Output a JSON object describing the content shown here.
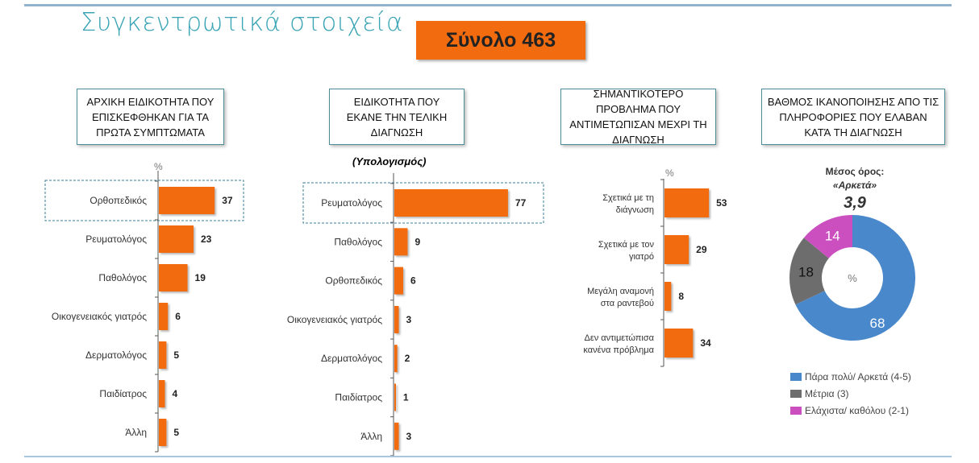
{
  "title": "Συγκεντρωτικά στοιχεία",
  "total_label": "Σύνολο 463",
  "headers": [
    "ΑΡΧΙΚΗ ΕΙΔΙΚΟΤΗΤΑ ΠΟΥ ΕΠΙΣΚΕΦΘΗΚΑΝ ΓΙΑ ΤΑ ΠΡΩΤΑ ΣΥΜΠΤΩΜΑΤΑ",
    "ΕΙΔΙΚΟΤΗΤΑ ΠΟΥ ΕΚΑΝΕ ΤΗΝ ΤΕΛΙΚΗ ΔΙΑΓΝΩΣΗ",
    "ΣΗΜΑΝΤΙΚΟΤΕΡΟ ΠΡΟΒΛΗΜΑ ΠΟΥ ΑΝΤΙΜΕΤΩΠΙΣΑΝ ΜΕΧΡΙ ΤΗ ΔΙΑΓΝΩΣΗ",
    "ΒΑΘΜΟΣ ΙΚΑΝΟΠΟΙΗΣΗΣ ΑΠΟ ΤΙΣ ΠΛΗΡΟΦΟΡΙΕΣ ΠΟΥ ΕΛΑΒΑΝ ΚΑΤΆ ΤΗ ΔΙΑΓΝΩΣΗ"
  ],
  "subtitle_calc": "(Υπολογισμός)",
  "colors": {
    "bar": "#f26b0f",
    "blue": "#4a88cc",
    "gray": "#6d6d6d",
    "pink": "#cc4fc0",
    "teal": "#3aa4b5"
  },
  "chart_data": [
    {
      "type": "bar",
      "orientation": "horizontal",
      "unit": "%",
      "categories": [
        "Ορθοπεδικός",
        "Ρευματολόγος",
        "Παθολόγος",
        "Οικογενειακός  γιατρός",
        "Δερματολόγος",
        "Παιδίατρος",
        "Άλλη"
      ],
      "values": [
        37,
        23,
        19,
        6,
        5,
        4,
        5
      ],
      "highlighted": "Ορθοπεδικός"
    },
    {
      "type": "bar",
      "orientation": "horizontal",
      "unit": "",
      "categories": [
        "Ρευματολόγος",
        "Παθολόγος",
        "Ορθοπεδικός",
        "Οικογενειακός  γιατρός",
        "Δερματολόγος",
        "Παιδίατρος",
        "Άλλη"
      ],
      "values": [
        77,
        9,
        6,
        3,
        2,
        1,
        3
      ],
      "highlighted": "Ρευματολόγος"
    },
    {
      "type": "bar",
      "orientation": "horizontal",
      "unit": "%",
      "categories": [
        [
          "Σχετικά με τη",
          "διάγνωση"
        ],
        [
          "Σχετικά με τον",
          "γιατρό"
        ],
        [
          "Μεγάλη αναμονή",
          "στα ραντεβού"
        ],
        [
          "Δεν αντιμετώπισα",
          "κανένα πρόβλημα"
        ]
      ],
      "values": [
        53,
        29,
        8,
        34
      ]
    },
    {
      "type": "pie",
      "donut": true,
      "center_label": "%",
      "mean_label": "Μέσος όρος:",
      "mean_word": "«Αρκετά»",
      "mean_value": "3,9",
      "series": [
        {
          "name": "Πάρα πολύ/ Αρκετά (4-5)",
          "value": 68,
          "color": "#4a88cc"
        },
        {
          "name": "Μέτρια (3)",
          "value": 18,
          "color": "#6d6d6d"
        },
        {
          "name": "Ελάχιστα/ καθόλου (2-1)",
          "value": 14,
          "color": "#cc4fc0"
        }
      ],
      "legend": "bottom"
    }
  ]
}
